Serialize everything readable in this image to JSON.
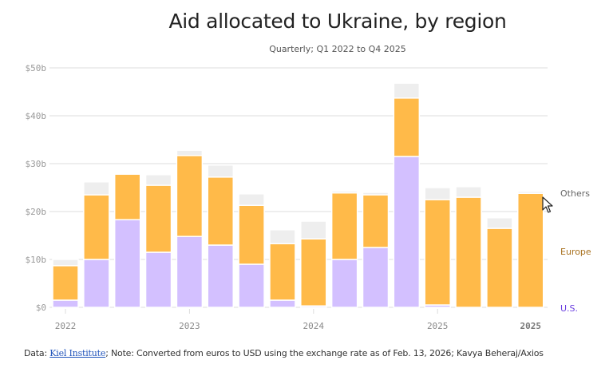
{
  "header": {
    "title": "Aid allocated to Ukraine, by region",
    "subtitle": "Quarterly; Q1 2022 to Q4 2025"
  },
  "footer": {
    "prefix": "Data: ",
    "source_link": "Kiel Institute",
    "note": "; Note: Converted from euros to USD using the exchange rate as of Feb. 13, 2026; Kavya Beheraj/Axios"
  },
  "colors": {
    "us": "#D3C0FF",
    "europe": "#FFBA49",
    "others": "#EEEEEE",
    "legend_us": "#6B3FE0",
    "legend_europe": "#A8711E",
    "legend_others": "#666666",
    "grid": "#E3E3E3"
  },
  "chart_data": {
    "type": "bar",
    "stacked": true,
    "title": "Aid allocated to Ukraine, by region",
    "subtitle": "Quarterly; Q1 2022 to Q4 2025",
    "xlabel": "",
    "ylabel": "",
    "ylim": [
      0,
      50
    ],
    "yticks": [
      0,
      10,
      20,
      30,
      40,
      50
    ],
    "ytick_labels": [
      "$0",
      "$10b",
      "$20b",
      "$30b",
      "$40b",
      "$50b"
    ],
    "grid": true,
    "legend_placement": "right",
    "categories": [
      "Q1 2022",
      "Q2 2022",
      "Q3 2022",
      "Q4 2022",
      "Q1 2023",
      "Q2 2023",
      "Q3 2023",
      "Q4 2023",
      "Q1 2024",
      "Q2 2024",
      "Q3 2024",
      "Q4 2024",
      "Q1 2025",
      "Q2 2025",
      "Q3 2025",
      "Q4 2025"
    ],
    "xtick_labels": [
      {
        "index": 0,
        "label": "2022",
        "bold": false
      },
      {
        "index": 4,
        "label": "2023",
        "bold": false
      },
      {
        "index": 8,
        "label": "2024",
        "bold": false
      },
      {
        "index": 12,
        "label": "2025",
        "bold": false
      },
      {
        "index": 15,
        "label": "2025",
        "bold": true
      }
    ],
    "series": [
      {
        "name": "U.S.",
        "key": "us",
        "values": [
          1.5,
          10.0,
          18.3,
          11.5,
          14.8,
          13.0,
          9.0,
          1.5,
          0.3,
          10.0,
          12.5,
          31.5,
          0.5,
          0.0,
          0.0,
          0.0
        ]
      },
      {
        "name": "Europe",
        "key": "europe",
        "values": [
          7.2,
          13.5,
          9.5,
          14.0,
          16.9,
          14.2,
          12.3,
          11.8,
          14.0,
          13.9,
          11.0,
          12.2,
          22.0,
          23.0,
          16.5,
          23.8
        ]
      },
      {
        "name": "Others",
        "key": "others",
        "values": [
          1.3,
          2.7,
          0.0,
          2.2,
          1.1,
          2.5,
          2.4,
          2.9,
          3.7,
          0.4,
          0.5,
          3.1,
          2.5,
          2.2,
          2.2,
          0.4
        ]
      }
    ]
  }
}
